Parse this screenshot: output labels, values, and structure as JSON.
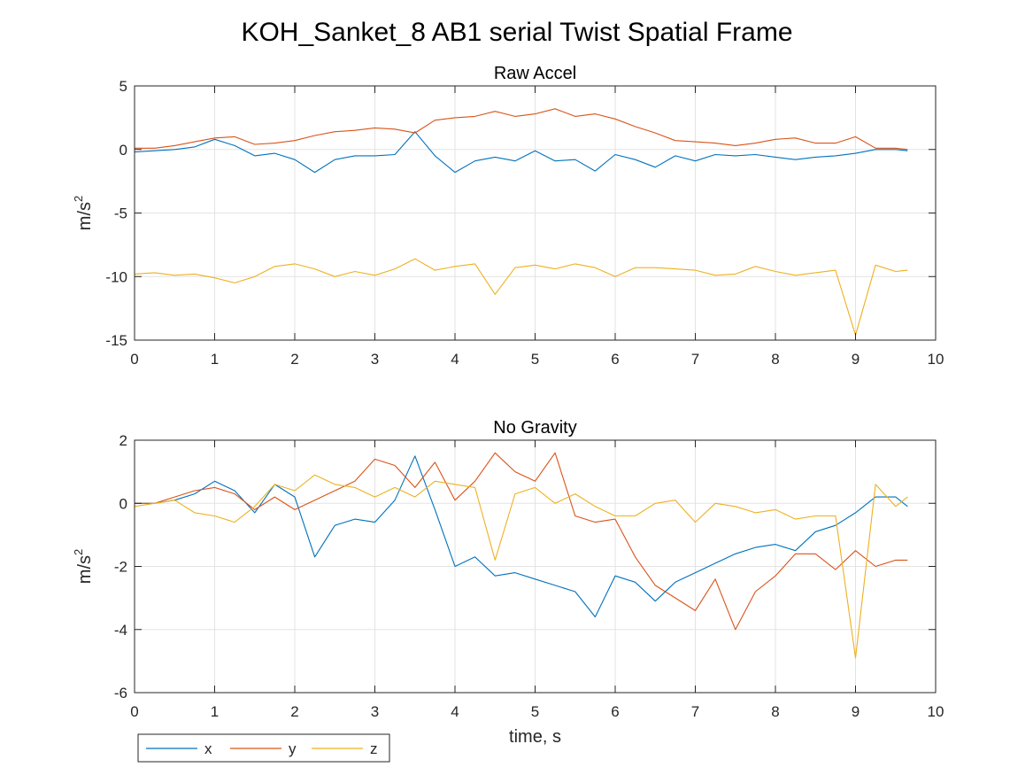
{
  "figure": {
    "title": "KOH_Sanket_8 AB1 serial Twist Spatial Frame"
  },
  "colors": {
    "x": "#0072BD",
    "y": "#D95319",
    "z": "#EDB120",
    "axes": "#262626",
    "grid": "#e3e3e3"
  },
  "legend": {
    "placement": "bottom-left, outside",
    "entries": [
      "x",
      "y",
      "z"
    ]
  },
  "chart_data": [
    {
      "type": "line",
      "title": "Raw Accel",
      "xlabel": "",
      "ylabel": "m/s",
      "ylabel_superscript": "2",
      "xlim": [
        0,
        10
      ],
      "ylim": [
        -15,
        5
      ],
      "xticks": [
        0,
        1,
        2,
        3,
        4,
        5,
        6,
        7,
        8,
        9,
        10
      ],
      "yticks": [
        5,
        0,
        -5,
        -10,
        -15
      ],
      "grid": true,
      "x": [
        0,
        0.25,
        0.5,
        0.75,
        1,
        1.25,
        1.5,
        1.75,
        2,
        2.25,
        2.5,
        2.75,
        3,
        3.25,
        3.5,
        3.75,
        4,
        4.25,
        4.5,
        4.75,
        5,
        5.25,
        5.5,
        5.75,
        6,
        6.25,
        6.5,
        6.75,
        7,
        7.25,
        7.5,
        7.75,
        8,
        8.25,
        8.5,
        8.75,
        9,
        9.25,
        9.5,
        9.65
      ],
      "series": [
        {
          "name": "x",
          "values": [
            -0.2,
            -0.1,
            0.0,
            0.2,
            0.8,
            0.3,
            -0.5,
            -0.3,
            -0.8,
            -1.8,
            -0.8,
            -0.5,
            -0.5,
            -0.4,
            1.4,
            -0.5,
            -1.8,
            -0.9,
            -0.6,
            -0.9,
            -0.1,
            -0.9,
            -0.8,
            -1.7,
            -0.4,
            -0.8,
            -1.4,
            -0.5,
            -0.9,
            -0.4,
            -0.5,
            -0.4,
            -0.6,
            -0.8,
            -0.6,
            -0.5,
            -0.3,
            0.0,
            0.0,
            -0.1
          ]
        },
        {
          "name": "y",
          "values": [
            0.1,
            0.1,
            0.3,
            0.6,
            0.9,
            1.0,
            0.4,
            0.5,
            0.7,
            1.1,
            1.4,
            1.5,
            1.7,
            1.6,
            1.3,
            2.3,
            2.5,
            2.6,
            3.0,
            2.6,
            2.8,
            3.2,
            2.6,
            2.8,
            2.4,
            1.8,
            1.3,
            0.7,
            0.6,
            0.5,
            0.3,
            0.5,
            0.8,
            0.9,
            0.5,
            0.5,
            1.0,
            0.1,
            0.1,
            0.0
          ]
        },
        {
          "name": "z",
          "values": [
            -9.8,
            -9.7,
            -9.9,
            -9.8,
            -10.1,
            -10.5,
            -10.0,
            -9.2,
            -9.0,
            -9.4,
            -10.0,
            -9.6,
            -9.9,
            -9.4,
            -8.6,
            -9.5,
            -9.2,
            -9.0,
            -11.4,
            -9.3,
            -9.1,
            -9.4,
            -9.0,
            -9.3,
            -10.0,
            -9.3,
            -9.3,
            -9.4,
            -9.5,
            -9.9,
            -9.8,
            -9.2,
            -9.6,
            -9.9,
            -9.7,
            -9.5,
            -14.6,
            -9.1,
            -9.6,
            -9.5
          ]
        }
      ]
    },
    {
      "type": "line",
      "title": "No Gravity",
      "xlabel": "time, s",
      "ylabel": "m/s",
      "ylabel_superscript": "2",
      "xlim": [
        0,
        10
      ],
      "ylim": [
        -6,
        2
      ],
      "xticks": [
        0,
        1,
        2,
        3,
        4,
        5,
        6,
        7,
        8,
        9,
        10
      ],
      "yticks": [
        2,
        0,
        -2,
        -4,
        -6
      ],
      "grid": true,
      "x": [
        0,
        0.25,
        0.5,
        0.75,
        1,
        1.25,
        1.5,
        1.75,
        2,
        2.25,
        2.5,
        2.75,
        3,
        3.25,
        3.5,
        3.75,
        4,
        4.25,
        4.5,
        4.75,
        5,
        5.25,
        5.5,
        5.75,
        6,
        6.25,
        6.5,
        6.75,
        7,
        7.25,
        7.5,
        7.75,
        8,
        8.25,
        8.5,
        8.75,
        9,
        9.25,
        9.5,
        9.65
      ],
      "series": [
        {
          "name": "x",
          "values": [
            0.0,
            0.0,
            0.1,
            0.3,
            0.7,
            0.4,
            -0.3,
            0.6,
            0.2,
            -1.7,
            -0.7,
            -0.5,
            -0.6,
            0.1,
            1.5,
            -0.2,
            -2.0,
            -1.7,
            -2.3,
            -2.2,
            -2.4,
            -2.6,
            -2.8,
            -3.6,
            -2.3,
            -2.5,
            -3.1,
            -2.5,
            -2.2,
            -1.9,
            -1.6,
            -1.4,
            -1.3,
            -1.5,
            -0.9,
            -0.7,
            -0.3,
            0.2,
            0.2,
            -0.1
          ]
        },
        {
          "name": "y",
          "values": [
            0.0,
            0.0,
            0.2,
            0.4,
            0.5,
            0.3,
            -0.2,
            0.2,
            -0.2,
            0.1,
            0.4,
            0.7,
            1.4,
            1.2,
            0.5,
            1.3,
            0.1,
            0.7,
            1.6,
            1.0,
            0.7,
            1.6,
            -0.4,
            -0.6,
            -0.5,
            -1.7,
            -2.6,
            -3.0,
            -3.4,
            -2.4,
            -4.0,
            -2.8,
            -2.3,
            -1.6,
            -1.6,
            -2.1,
            -1.5,
            -2.0,
            -1.8,
            -1.8
          ]
        },
        {
          "name": "z",
          "values": [
            -0.1,
            0.0,
            0.1,
            -0.3,
            -0.4,
            -0.6,
            -0.1,
            0.6,
            0.4,
            0.9,
            0.6,
            0.5,
            0.2,
            0.5,
            0.2,
            0.7,
            0.6,
            0.5,
            -1.8,
            0.3,
            0.5,
            0.0,
            0.3,
            -0.1,
            -0.4,
            -0.4,
            0.0,
            0.1,
            -0.6,
            0.0,
            -0.1,
            -0.3,
            -0.2,
            -0.5,
            -0.4,
            -0.4,
            -4.9,
            0.6,
            -0.1,
            0.2
          ]
        }
      ]
    }
  ]
}
